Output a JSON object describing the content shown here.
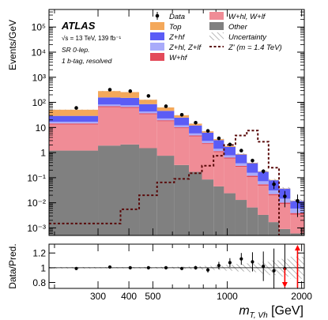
{
  "chart_data": {
    "type": "histogram",
    "experiment": "ATLAS",
    "energy_label": "√s = 13 TeV, 139 fb⁻¹",
    "region_line1": "SR 0-lep.",
    "region_line2": "1 b-tag, resolved",
    "ylabel": "Events/GeV",
    "xlabel": "m_T,Vh [GeV]",
    "ratio_ylabel": "Data/Pred.",
    "xscale": "log",
    "yscale": "log",
    "xlim": [
      190,
      2050
    ],
    "ylim": [
      0.0005,
      500000
    ],
    "ratio_ylim": [
      0.72,
      1.32
    ],
    "x_ticks": [
      {
        "value": 300,
        "label": "300"
      },
      {
        "value": 400,
        "label": "400"
      },
      {
        "value": 500,
        "label": "500"
      },
      {
        "value": 1000,
        "label": "1000"
      },
      {
        "value": 2000,
        "label": "2000"
      }
    ],
    "y_ticks": [
      {
        "exp": 5,
        "label": "10⁵"
      },
      {
        "exp": 4,
        "label": "10⁴"
      },
      {
        "exp": 3,
        "label": "10³"
      },
      {
        "exp": 2,
        "label": "10²"
      },
      {
        "exp": 1,
        "label": "10"
      },
      {
        "exp": 0,
        "label": "1"
      },
      {
        "exp": -1,
        "label": "10⁻¹"
      },
      {
        "exp": -2,
        "label": "10⁻²"
      },
      {
        "exp": -3,
        "label": "10⁻³"
      }
    ],
    "ratio_ticks": [
      {
        "value": 0.8,
        "label": "0.8"
      },
      {
        "value": 1.0,
        "label": "1"
      },
      {
        "value": 1.2,
        "label": "1.2"
      }
    ],
    "bin_edges": [
      190,
      300,
      370,
      440,
      520,
      610,
      700,
      790,
      880,
      970,
      1080,
      1200,
      1330,
      1470,
      1620,
      1800,
      2050
    ],
    "stack": [
      {
        "name": "Other",
        "color": "#808080",
        "values": [
          1.2,
          1.9,
          2.1,
          1.5,
          0.75,
          0.32,
          0.17,
          0.085,
          0.045,
          0.024,
          0.013,
          0.0065,
          0.0033,
          0.0017,
          0.0009,
          0.0006
        ]
      },
      {
        "name": "W+hl, W+lf",
        "color": "#f08c96",
        "values": [
          12,
          62,
          58,
          32,
          17,
          9,
          4.2,
          2.1,
          1.0,
          0.55,
          0.26,
          0.1,
          0.045,
          0.018,
          0.008,
          0.0028
        ]
      },
      {
        "name": "W+hf",
        "color": "#e34a5a",
        "values": [
          1.2,
          6.0,
          5.0,
          3.0,
          1.6,
          0.85,
          0.42,
          0.2,
          0.1,
          0.055,
          0.025,
          0.012,
          0.006,
          0.0025,
          0.0012,
          0.0005
        ]
      },
      {
        "name": "Z+hl, Z+lf",
        "color": "#a9abfa",
        "values": [
          2.5,
          12,
          11,
          6.5,
          3.5,
          2.0,
          1.0,
          0.52,
          0.27,
          0.15,
          0.075,
          0.038,
          0.018,
          0.009,
          0.0045,
          0.002
        ]
      },
      {
        "name": "Z+hf",
        "color": "#5b5cf6",
        "values": [
          12,
          75,
          75,
          42,
          23,
          12.5,
          6.2,
          3.3,
          1.7,
          0.9,
          0.46,
          0.22,
          0.1,
          0.048,
          0.022,
          0.006
        ]
      },
      {
        "name": "Top",
        "color": "#f4a85a",
        "values": [
          22,
          125,
          105,
          42,
          17,
          6.0,
          2.2,
          0.85,
          0.32,
          0.12,
          0.045,
          0.016,
          0.006,
          0.0022,
          0.0008,
          0.0003
        ]
      }
    ],
    "signal": {
      "name": "Z' (m = 1.4 TeV)",
      "color": "#5a0a0a",
      "values": [
        0.0015,
        0.0015,
        0.0055,
        0.02,
        0.065,
        0.09,
        0.15,
        0.3,
        0.75,
        2.0,
        4.8,
        7.5,
        2.7,
        0.25,
        0.0003,
        0.0003
      ]
    },
    "data": {
      "name": "Data",
      "x": [
        245,
        335,
        405,
        480,
        565,
        655,
        745,
        835,
        925,
        1025,
        1140,
        1265,
        1400,
        1545,
        1710,
        1925
      ],
      "y": [
        60,
        320,
        280,
        180,
        70,
        32,
        15.5,
        7.3,
        3.7,
        2.1,
        1.2,
        0.48,
        0.18,
        0.055,
        0.018,
        0.012
      ],
      "ratio": [
        0.99,
        1.01,
        1.0,
        1.0,
        1.0,
        0.99,
        1.0,
        0.97,
        1.03,
        1.07,
        1.12,
        1.08,
        1.02,
        0.96,
        0.99,
        1.32
      ],
      "ratio_err": [
        0.012,
        0.006,
        0.006,
        0.008,
        0.012,
        0.018,
        0.025,
        0.035,
        0.05,
        0.06,
        0.08,
        0.13,
        0.2,
        0.3,
        0.45,
        0.9
      ],
      "ratio_arrow_last": true
    },
    "uncertainty_rel": [
      0.01,
      0.008,
      0.008,
      0.01,
      0.012,
      0.015,
      0.02,
      0.025,
      0.03,
      0.04,
      0.05,
      0.06,
      0.08,
      0.1,
      0.12,
      0.15
    ],
    "legend": {
      "left": [
        {
          "label": "Data",
          "kind": "data"
        },
        {
          "label": "Top",
          "kind": "box",
          "color": "#f4a85a"
        },
        {
          "label": "Z+hf",
          "kind": "box",
          "color": "#5b5cf6"
        },
        {
          "label": "Z+hl, Z+lf",
          "kind": "box",
          "color": "#a9abfa"
        },
        {
          "label": "W+hf",
          "kind": "box",
          "color": "#e34a5a"
        }
      ],
      "right": [
        {
          "label": "W+hl, W+lf",
          "kind": "box",
          "color": "#f08c96"
        },
        {
          "label": "Other",
          "kind": "box",
          "color": "#808080"
        },
        {
          "label": "Uncertainty",
          "kind": "hatch"
        },
        {
          "label": "Z' (m = 1.4 TeV)",
          "kind": "dashed",
          "color": "#5a0a0a"
        }
      ]
    }
  }
}
